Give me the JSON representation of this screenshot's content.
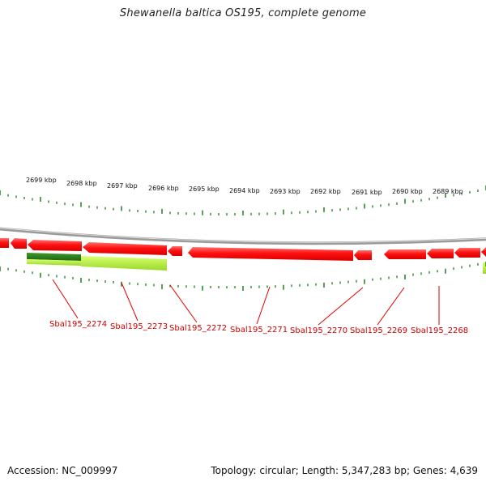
{
  "title": "Shewanella baltica OS195, complete genome",
  "footer": {
    "accession": "Accession: NC_009997",
    "summary": "Topology: circular; Length: 5,347,283 bp; Genes: 4,639"
  },
  "scale_labels": [
    {
      "kbp": 2699,
      "text": "2699 kbp"
    },
    {
      "kbp": 2698,
      "text": "2698 kbp"
    },
    {
      "kbp": 2697,
      "text": "2697 kbp"
    },
    {
      "kbp": 2696,
      "text": "2696 kbp"
    },
    {
      "kbp": 2695,
      "text": "2695 kbp"
    },
    {
      "kbp": 2694,
      "text": "2694 kbp"
    },
    {
      "kbp": 2693,
      "text": "2693 kbp"
    },
    {
      "kbp": 2692,
      "text": "2692 kbp"
    },
    {
      "kbp": 2691,
      "text": "2691 kbp"
    },
    {
      "kbp": 2690,
      "text": "2690 kbp"
    },
    {
      "kbp": 2689,
      "text": "2689 kbp"
    }
  ],
  "gene_labels": [
    "Sbal195_2274",
    "Sbal195_2273",
    "Sbal195_2272",
    "Sbal195_2271",
    "Sbal195_2270",
    "Sbal195_2269",
    "Sbal195_2268"
  ],
  "colors": {
    "gene": "#ff1010",
    "gene_highlight": "#ff6a6a",
    "backbone": "#888888",
    "tick": "#2a8a2a",
    "label": "#cc0000",
    "feature_dark": "#2e7d1e",
    "feature_light": "#b4f040"
  }
}
